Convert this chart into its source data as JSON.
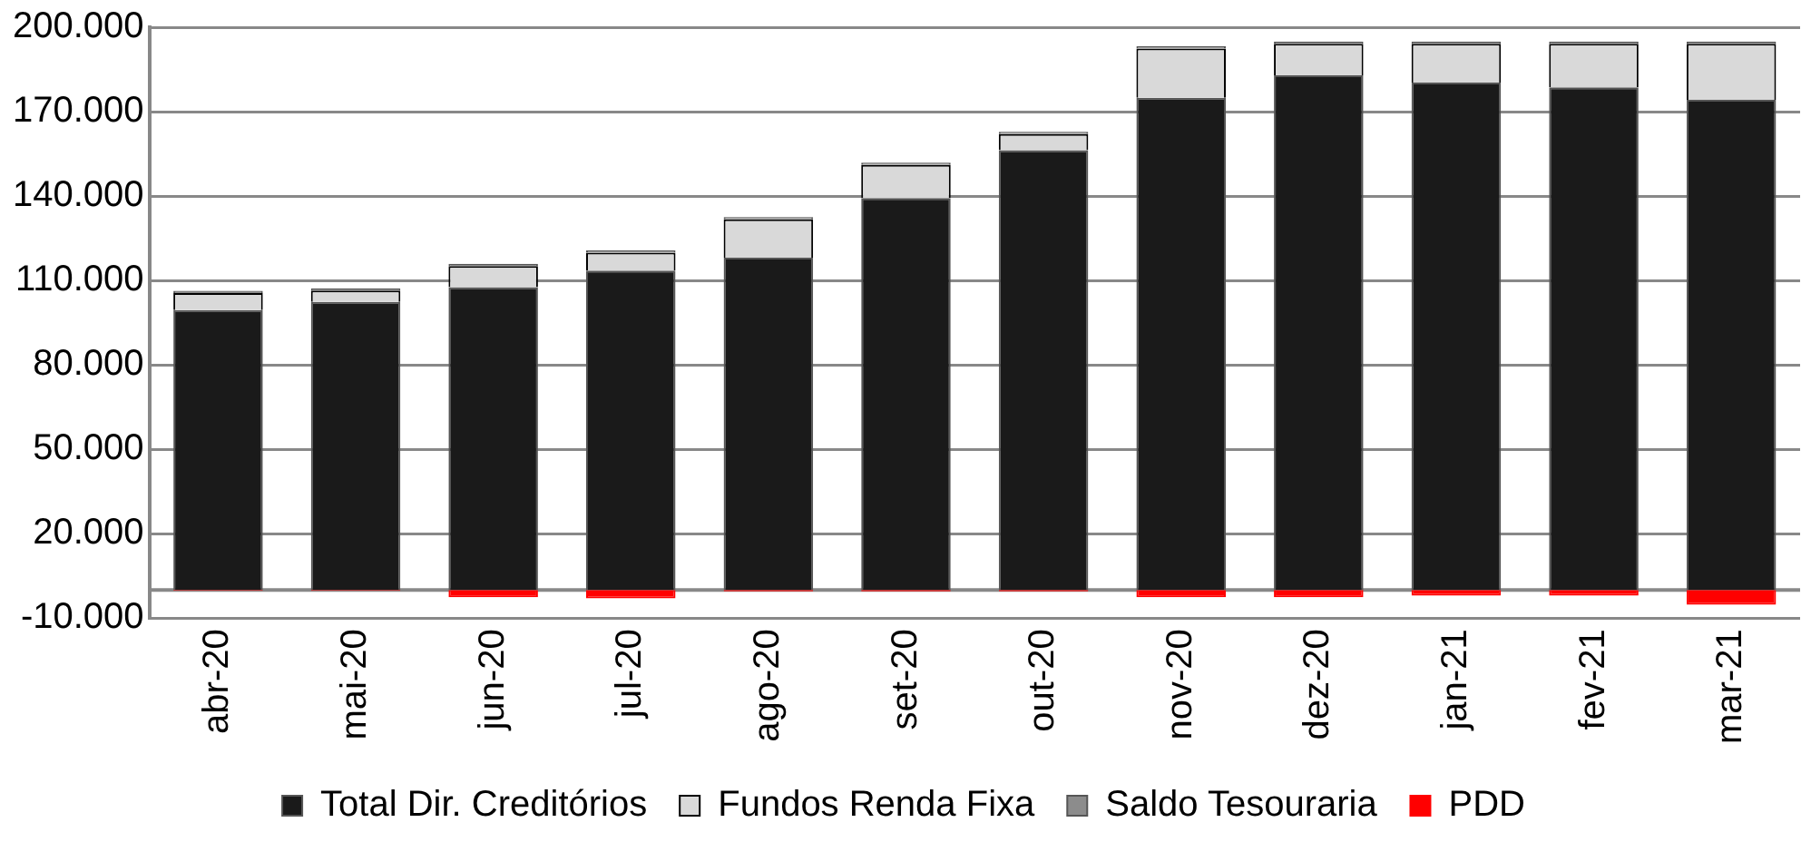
{
  "chart_data": {
    "type": "bar",
    "stacked": true,
    "categories": [
      "abr-20",
      "mai-20",
      "jun-20",
      "jul-20",
      "ago-20",
      "set-20",
      "out-20",
      "nov-20",
      "dez-20",
      "jan-21",
      "fev-21",
      "mar-21"
    ],
    "series": [
      {
        "name": "Total Dir. Creditórios",
        "color": "#1a1a1a",
        "values": [
          99500,
          102400,
          107600,
          113500,
          118100,
          139300,
          156300,
          174900,
          182900,
          180300,
          178600,
          174200
        ]
      },
      {
        "name": "Fundos Renda Fixa",
        "color": "#d9d9d9",
        "values": [
          6000,
          4000,
          7500,
          6400,
          13600,
          11800,
          5700,
          17500,
          11200,
          13800,
          15500,
          19900
        ]
      },
      {
        "name": "Saldo Tesouraria",
        "color": "#8c8c8c",
        "values": [
          800,
          800,
          800,
          800,
          800,
          800,
          800,
          800,
          800,
          800,
          800,
          800
        ]
      },
      {
        "name": "PDD",
        "color": "#ff0000",
        "values": [
          -300,
          -300,
          -2600,
          -3000,
          -500,
          -500,
          -500,
          -2600,
          -2600,
          -2000,
          -2000,
          -5200
        ]
      }
    ],
    "ylim": [
      -10000,
      200000
    ],
    "yticks": [
      {
        "value": -10000,
        "label": "-10.000"
      },
      {
        "value": 20000,
        "label": "20.000"
      },
      {
        "value": 50000,
        "label": "50.000"
      },
      {
        "value": 80000,
        "label": "80.000"
      },
      {
        "value": 110000,
        "label": "110.000"
      },
      {
        "value": 140000,
        "label": "140.000"
      },
      {
        "value": 170000,
        "label": "170.000"
      },
      {
        "value": 200000,
        "label": "200.000"
      }
    ],
    "grid": "y",
    "legend": "bottom"
  }
}
